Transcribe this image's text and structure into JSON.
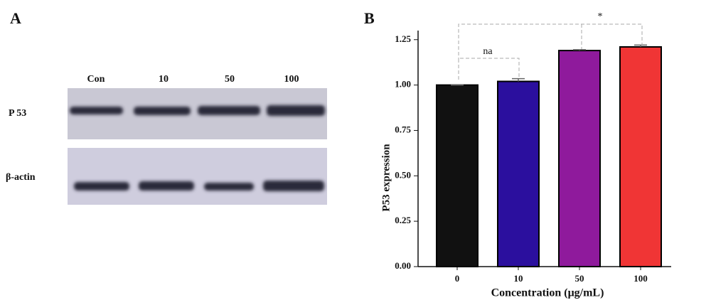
{
  "panel_a": {
    "label": "A",
    "lanes": [
      "Con",
      "10",
      "50",
      "100"
    ],
    "rows": [
      "P 53",
      "β-actin"
    ]
  },
  "chart_data": {
    "type": "bar",
    "panel_label": "B",
    "categories": [
      "0",
      "10",
      "50",
      "100"
    ],
    "values": [
      1.0,
      1.02,
      1.19,
      1.21
    ],
    "errors": [
      0.0,
      0.015,
      0.005,
      0.01
    ],
    "colors": [
      "#111111",
      "#2b0f9e",
      "#8f1a9c",
      "#f03535"
    ],
    "xlabel": "Concentration (μg/mL)",
    "ylabel": "P53 expression",
    "ylim": [
      0,
      1.3
    ],
    "yticks": [
      {
        "value": 0,
        "label": "0.00"
      },
      {
        "value": 0.25,
        "label": "0.25"
      },
      {
        "value": 0.5,
        "label": "0.50"
      },
      {
        "value": 0.75,
        "label": "0.75"
      },
      {
        "value": 1,
        "label": "1.00"
      },
      {
        "value": 1.25,
        "label": "1.25"
      }
    ],
    "annotations": [
      "na",
      "*"
    ]
  }
}
